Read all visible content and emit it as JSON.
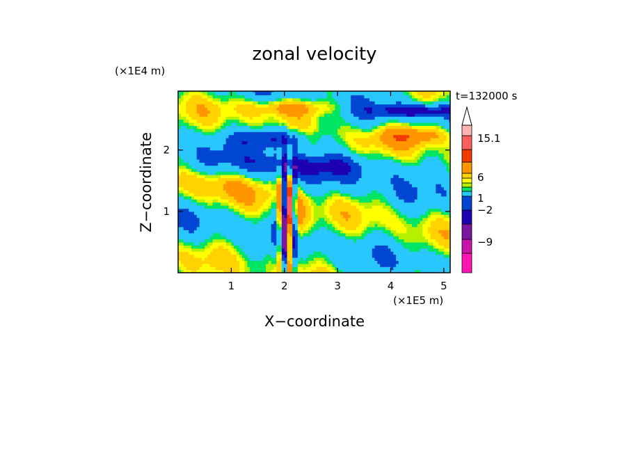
{
  "chart_data": {
    "type": "heatmap",
    "title": "zonal velocity",
    "xlabel": "X−coordinate",
    "ylabel": "Z−coordinate",
    "x_unit": "(×1E5 m)",
    "y_unit": "(×1E4 m)",
    "time_label": "t=132000 s",
    "xlim": [
      0,
      5.12
    ],
    "ylim": [
      0,
      2.96
    ],
    "x_ticks": [
      "1",
      "2",
      "3",
      "4",
      "5"
    ],
    "x_tick_values": [
      1,
      2,
      3,
      4,
      5
    ],
    "y_ticks": [
      "1",
      "2"
    ],
    "y_tick_values": [
      1,
      2
    ],
    "colorbar": {
      "labels": [
        "15.1",
        "6",
        "1",
        "−2",
        "−9"
      ],
      "label_values": [
        15.1,
        6,
        1,
        -2,
        -9
      ],
      "level_colors": [
        "#ff14b4",
        "#c814aa",
        "#7d14a0",
        "#1e00b4",
        "#0046d2",
        "#28c8ff",
        "#00e664",
        "#b4f000",
        "#ffff00",
        "#ffd200",
        "#ff9600",
        "#f03c00",
        "#ff5f5f",
        "#ffb4b4"
      ],
      "extend": "max"
    },
    "field": {
      "grid_step_x": 0.05,
      "grid_step_z": 0.05,
      "background_level": "yellow",
      "features": [
        {
          "kind": "negative_band",
          "x": [
            1.1,
            2.6
          ],
          "z": [
            2.1,
            2.45
          ],
          "min": -9
        },
        {
          "kind": "negative_band",
          "x": [
            3.6,
            5.1
          ],
          "z": [
            2.55,
            2.8
          ],
          "min": -9
        },
        {
          "kind": "positive_band",
          "x": [
            1.5,
            2.6
          ],
          "z": [
            2.6,
            2.85
          ],
          "max": 6
        },
        {
          "kind": "positive_band",
          "x": [
            3.7,
            5.1
          ],
          "z": [
            2.1,
            2.4
          ],
          "max": 6
        },
        {
          "kind": "wave_packet",
          "x": [
            1.7,
            2.3
          ],
          "z": [
            0,
            1.7
          ],
          "max": 15.1,
          "min": -9
        }
      ]
    }
  }
}
